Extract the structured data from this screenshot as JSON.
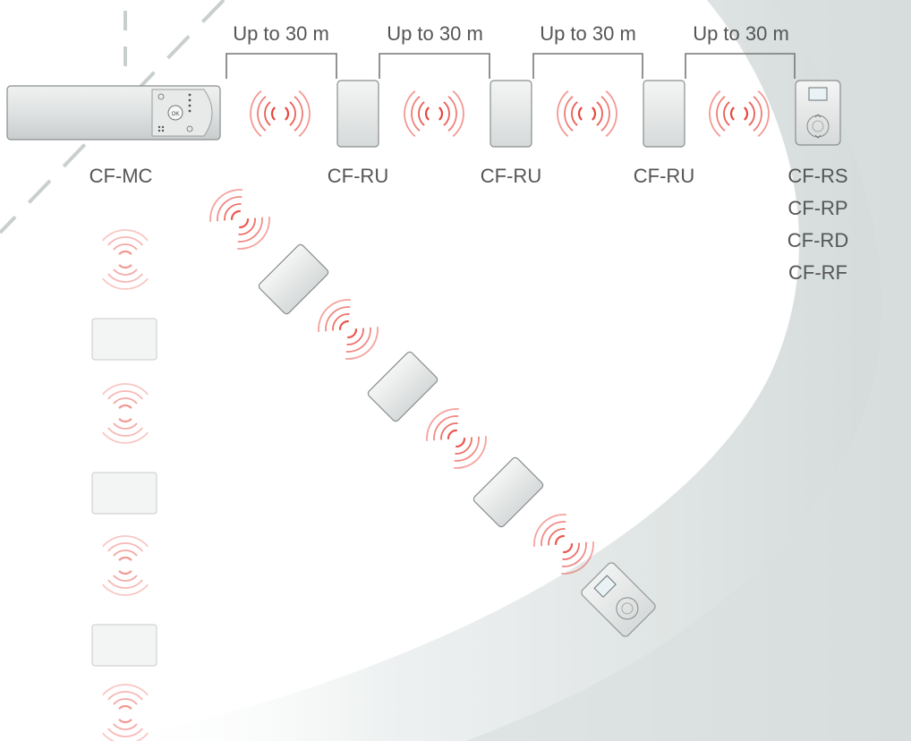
{
  "range_labels": [
    "Up to 30 m",
    "Up to 30 m",
    "Up to 30 m",
    "Up to 30 m"
  ],
  "devices": {
    "master": "CF-MC",
    "repeaters": [
      "CF-RU",
      "CF-RU",
      "CF-RU"
    ],
    "room_units": [
      "CF-RS",
      "CF-RP",
      "CF-RD",
      "CF-RF"
    ]
  },
  "colors": {
    "signal": "#e8453c",
    "device_fill": "#e4e6e6",
    "device_stroke": "#8a8e8e",
    "label": "#555555",
    "arc_band": "#d5dcdb"
  },
  "icons": [
    "radio-wave-icon",
    "power-icon",
    "ok-icon",
    "home-icon",
    "arrow-up-icon",
    "arrow-down-icon"
  ]
}
